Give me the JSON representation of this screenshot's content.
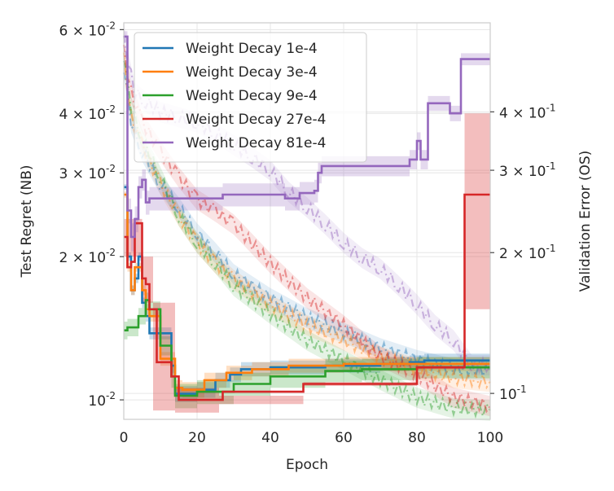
{
  "chart_data": {
    "type": "line",
    "x_label": "Epoch",
    "y_label_left": "Test Regret (NB)",
    "y_label_right": "Validation Error (OS)",
    "x_range": [
      0,
      100
    ],
    "x_ticks": [
      0,
      20,
      40,
      60,
      80,
      100
    ],
    "y_left_scale": "log",
    "y_left_range": [
      0.0091,
      0.062
    ],
    "y_left_ticks": [
      {
        "value": 0.01,
        "base": "10",
        "exp": "-2",
        "coef": ""
      },
      {
        "value": 0.02,
        "base": "10",
        "exp": "-2",
        "coef": "2 × "
      },
      {
        "value": 0.03,
        "base": "10",
        "exp": "-2",
        "coef": "3 × "
      },
      {
        "value": 0.04,
        "base": "10",
        "exp": "-2",
        "coef": "4 × "
      },
      {
        "value": 0.06,
        "base": "10",
        "exp": "-2",
        "coef": "6 × "
      }
    ],
    "y_right_scale": "log",
    "y_right_range": [
      0.088,
      0.62
    ],
    "y_right_ticks": [
      {
        "value": 0.1,
        "base": "10",
        "exp": "-1",
        "coef": ""
      },
      {
        "value": 0.2,
        "base": "10",
        "exp": "-1",
        "coef": "2 × "
      },
      {
        "value": 0.3,
        "base": "10",
        "exp": "-1",
        "coef": "3 × "
      },
      {
        "value": 0.4,
        "base": "10",
        "exp": "-1",
        "coef": "4 × "
      }
    ],
    "grid": true,
    "legend_position": "top-left",
    "series": [
      {
        "name": "Weight Decay 1e-4",
        "color": "#1f77b4",
        "test_regret": [
          [
            0,
            0.028
          ],
          [
            1,
            0.02
          ],
          [
            2,
            0.017
          ],
          [
            3,
            0.018
          ],
          [
            4,
            0.02
          ],
          [
            5,
            0.016
          ],
          [
            6,
            0.015
          ],
          [
            7,
            0.0138
          ],
          [
            10,
            0.0138
          ],
          [
            13,
            0.0118
          ],
          [
            14,
            0.0103
          ],
          [
            16,
            0.0103
          ],
          [
            20,
            0.0105
          ],
          [
            25,
            0.011
          ],
          [
            29,
            0.0113
          ],
          [
            32,
            0.0116
          ],
          [
            40,
            0.0117
          ],
          [
            55,
            0.0118
          ],
          [
            70,
            0.0119
          ],
          [
            78,
            0.012
          ],
          [
            82,
            0.0121
          ],
          [
            100,
            0.0121
          ]
        ],
        "band_halfwidth": 0.0004,
        "validation_error": [
          [
            0,
            0.5
          ],
          [
            2,
            0.38
          ],
          [
            5,
            0.33
          ],
          [
            10,
            0.28
          ],
          [
            15,
            0.25
          ],
          [
            20,
            0.22
          ],
          [
            25,
            0.2
          ],
          [
            30,
            0.18
          ],
          [
            40,
            0.16
          ],
          [
            50,
            0.145
          ],
          [
            60,
            0.135
          ],
          [
            70,
            0.125
          ],
          [
            80,
            0.118
          ],
          [
            90,
            0.113
          ],
          [
            100,
            0.112
          ]
        ]
      },
      {
        "name": "Weight Decay 3e-4",
        "color": "#ff7f0e",
        "test_regret": [
          [
            0,
            0.027
          ],
          [
            1,
            0.019
          ],
          [
            2,
            0.017
          ],
          [
            3,
            0.019
          ],
          [
            4,
            0.019
          ],
          [
            5,
            0.017
          ],
          [
            6,
            0.0155
          ],
          [
            7,
            0.015
          ],
          [
            10,
            0.0122
          ],
          [
            14,
            0.0106
          ],
          [
            16,
            0.0105
          ],
          [
            22,
            0.011
          ],
          [
            28,
            0.0114
          ],
          [
            35,
            0.0116
          ],
          [
            45,
            0.0118
          ],
          [
            60,
            0.0119
          ],
          [
            80,
            0.0119
          ],
          [
            100,
            0.0119
          ]
        ],
        "band_halfwidth": 0.0004,
        "validation_error": [
          [
            0,
            0.52
          ],
          [
            2,
            0.39
          ],
          [
            5,
            0.34
          ],
          [
            10,
            0.28
          ],
          [
            15,
            0.24
          ],
          [
            20,
            0.21
          ],
          [
            25,
            0.19
          ],
          [
            30,
            0.175
          ],
          [
            40,
            0.155
          ],
          [
            50,
            0.14
          ],
          [
            60,
            0.13
          ],
          [
            70,
            0.12
          ],
          [
            80,
            0.113
          ],
          [
            90,
            0.108
          ],
          [
            100,
            0.106
          ]
        ]
      },
      {
        "name": "Weight Decay 9e-4",
        "color": "#2ca02c",
        "test_regret": [
          [
            0,
            0.014
          ],
          [
            1,
            0.0142
          ],
          [
            3,
            0.0142
          ],
          [
            4,
            0.015
          ],
          [
            6,
            0.0162
          ],
          [
            7,
            0.0155
          ],
          [
            10,
            0.013
          ],
          [
            13,
            0.0112
          ],
          [
            14,
            0.0102
          ],
          [
            20,
            0.0104
          ],
          [
            30,
            0.0108
          ],
          [
            40,
            0.0112
          ],
          [
            55,
            0.0115
          ],
          [
            65,
            0.0116
          ],
          [
            80,
            0.0117
          ],
          [
            90,
            0.0117
          ],
          [
            100,
            0.0117
          ]
        ],
        "band_halfwidth": 0.0006,
        "validation_error": [
          [
            0,
            0.53
          ],
          [
            2,
            0.41
          ],
          [
            5,
            0.35
          ],
          [
            10,
            0.29
          ],
          [
            15,
            0.24
          ],
          [
            20,
            0.21
          ],
          [
            25,
            0.19
          ],
          [
            30,
            0.17
          ],
          [
            40,
            0.148
          ],
          [
            50,
            0.13
          ],
          [
            60,
            0.118
          ],
          [
            70,
            0.107
          ],
          [
            80,
            0.098
          ],
          [
            90,
            0.093
          ],
          [
            100,
            0.092
          ]
        ]
      },
      {
        "name": "Weight Decay 27e-4",
        "color": "#d62728",
        "test_regret": [
          [
            0,
            0.022
          ],
          [
            1,
            0.019
          ],
          [
            2,
            0.0195
          ],
          [
            3,
            0.0235
          ],
          [
            4,
            0.0235
          ],
          [
            5,
            0.018
          ],
          [
            6,
            0.0175
          ],
          [
            7,
            0.0155
          ],
          [
            9,
            0.012
          ],
          [
            10,
            0.012
          ],
          [
            13,
            0.0112
          ],
          [
            15,
            0.01
          ],
          [
            26,
            0.01
          ],
          [
            27,
            0.0104
          ],
          [
            40,
            0.0104
          ],
          [
            48,
            0.0104
          ],
          [
            49,
            0.0108
          ],
          [
            78,
            0.0108
          ],
          [
            80,
            0.0117
          ],
          [
            92,
            0.0117
          ],
          [
            93,
            0.027
          ],
          [
            100,
            0.027
          ]
        ],
        "band": [
          [
            0,
            0.02,
            0.024
          ],
          [
            5,
            0.016,
            0.02
          ],
          [
            8,
            0.0095,
            0.016
          ],
          [
            14,
            0.0094,
            0.0106
          ],
          [
            26,
            0.0098,
            0.0102
          ],
          [
            49,
            0.0107,
            0.0109
          ],
          [
            80,
            0.0116,
            0.0118
          ],
          [
            92,
            0.0116,
            0.0118
          ],
          [
            93,
            0.0155,
            0.04
          ],
          [
            100,
            0.0155,
            0.04
          ]
        ],
        "validation_error": [
          [
            0,
            0.54
          ],
          [
            2,
            0.44
          ],
          [
            5,
            0.38
          ],
          [
            10,
            0.33
          ],
          [
            15,
            0.29
          ],
          [
            20,
            0.26
          ],
          [
            25,
            0.245
          ],
          [
            30,
            0.23
          ],
          [
            40,
            0.19
          ],
          [
            50,
            0.16
          ],
          [
            60,
            0.14
          ],
          [
            70,
            0.12
          ],
          [
            80,
            0.11
          ],
          [
            90,
            0.098
          ],
          [
            100,
            0.094
          ]
        ]
      },
      {
        "name": "Weight Decay 81e-4",
        "color": "#9467bd",
        "test_regret": [
          [
            0,
            0.058
          ],
          [
            1,
            0.025
          ],
          [
            2,
            0.022
          ],
          [
            3,
            0.024
          ],
          [
            4,
            0.028
          ],
          [
            5,
            0.029
          ],
          [
            6,
            0.026
          ],
          [
            7,
            0.0265
          ],
          [
            26,
            0.0265
          ],
          [
            27,
            0.027
          ],
          [
            33,
            0.027
          ],
          [
            40,
            0.027
          ],
          [
            44,
            0.0265
          ],
          [
            48,
            0.0272
          ],
          [
            52,
            0.0275
          ],
          [
            53,
            0.03
          ],
          [
            54,
            0.031
          ],
          [
            76,
            0.031
          ],
          [
            78,
            0.032
          ],
          [
            79,
            0.032
          ],
          [
            80,
            0.035
          ],
          [
            81,
            0.032
          ],
          [
            83,
            0.042
          ],
          [
            88,
            0.042
          ],
          [
            89,
            0.04
          ],
          [
            91,
            0.04
          ],
          [
            92,
            0.052
          ],
          [
            100,
            0.052
          ]
        ],
        "band_halfwidth": 0.0015,
        "validation_error": [
          [
            0,
            0.6
          ],
          [
            1,
            0.52
          ],
          [
            3,
            0.44
          ],
          [
            6,
            0.42
          ],
          [
            10,
            0.4
          ],
          [
            15,
            0.39
          ],
          [
            20,
            0.38
          ],
          [
            25,
            0.36
          ],
          [
            30,
            0.34
          ],
          [
            35,
            0.32
          ],
          [
            40,
            0.3
          ],
          [
            45,
            0.27
          ],
          [
            50,
            0.25
          ],
          [
            55,
            0.23
          ],
          [
            60,
            0.21
          ],
          [
            65,
            0.195
          ],
          [
            70,
            0.185
          ],
          [
            75,
            0.17
          ],
          [
            80,
            0.155
          ],
          [
            85,
            0.14
          ],
          [
            90,
            0.13
          ],
          [
            95,
            0.115
          ],
          [
            100,
            0.115
          ]
        ]
      }
    ]
  }
}
